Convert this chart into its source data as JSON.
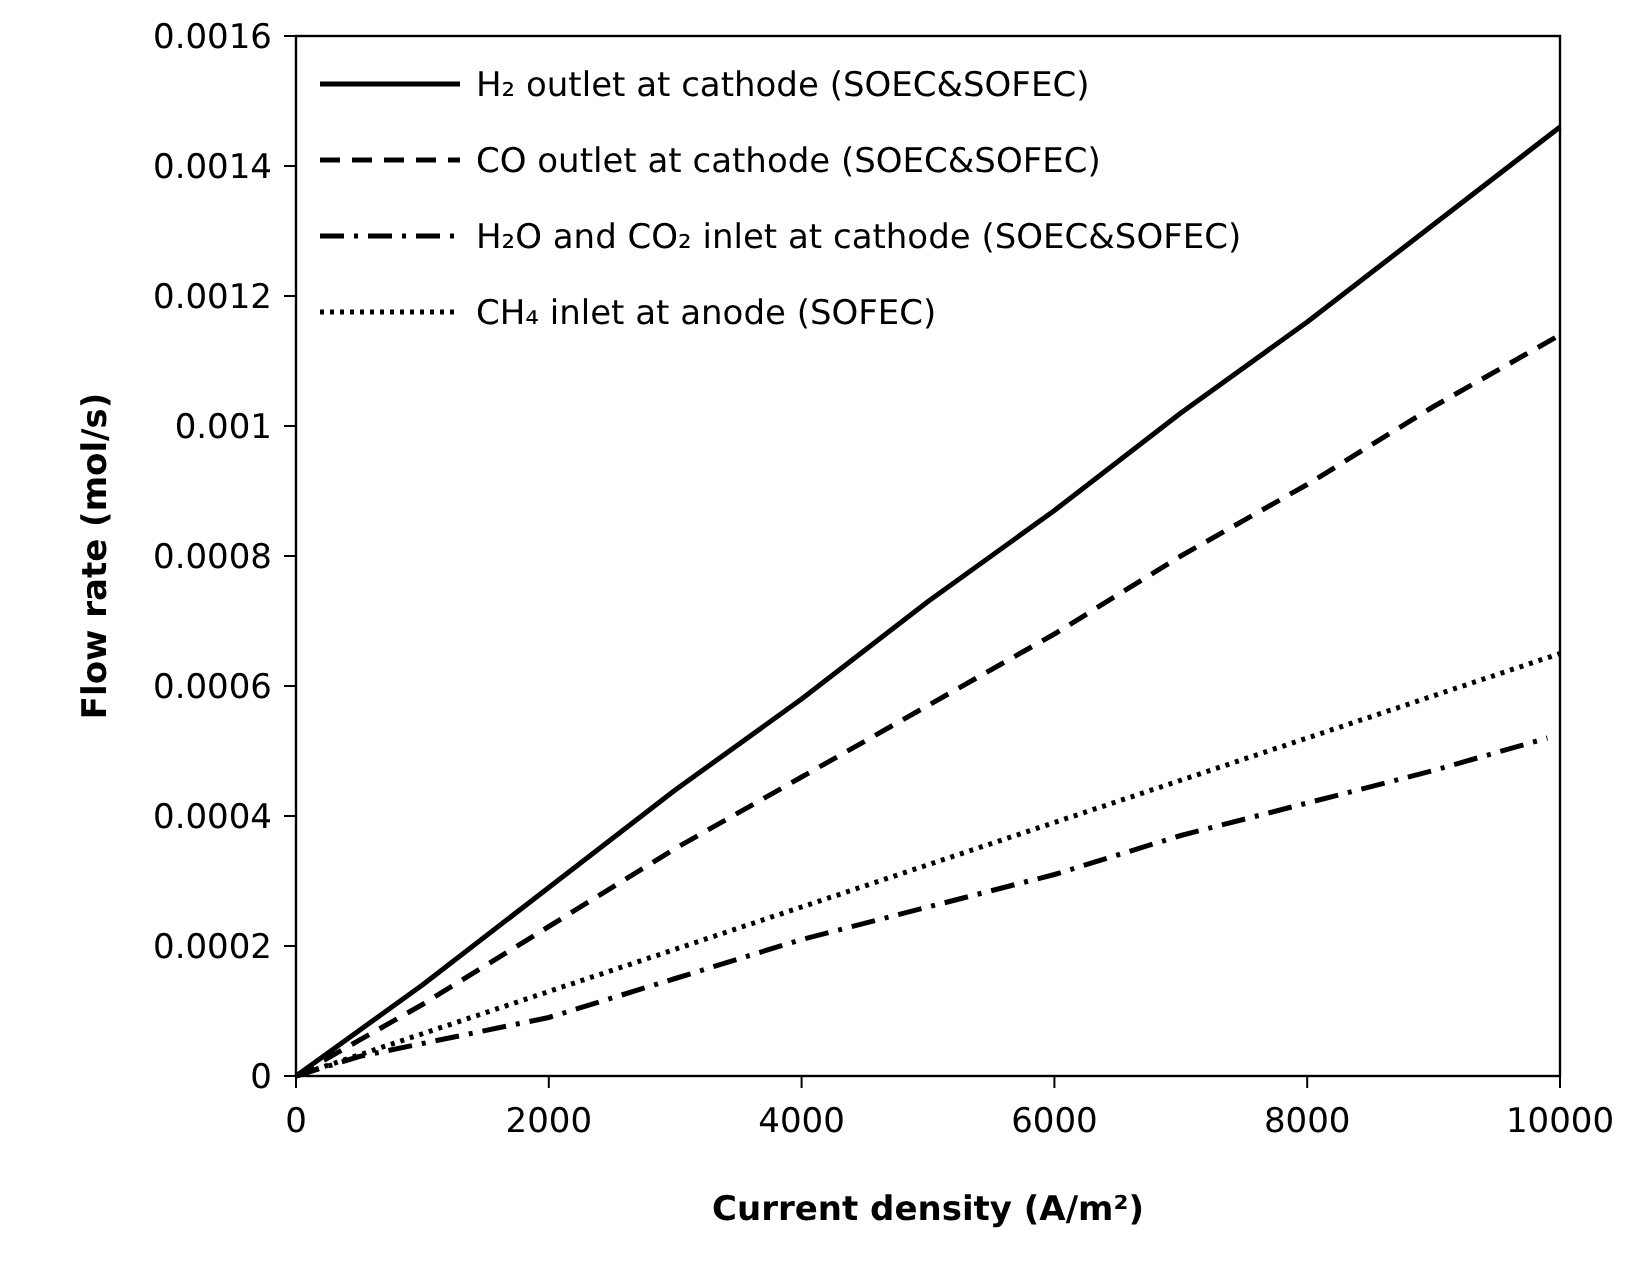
{
  "chart_data": {
    "type": "line",
    "xlabel": "Current density (A/m²)",
    "ylabel": "Flow rate (mol/s)",
    "xlim": [
      0,
      10000
    ],
    "xticks": [
      0,
      2000,
      4000,
      6000,
      8000,
      10000
    ],
    "ylim": [
      0,
      0.0016
    ],
    "yticks": [
      0,
      0.0002,
      0.0004,
      0.0006,
      0.0008,
      0.001,
      0.0012,
      0.0014,
      0.0016
    ],
    "legend": "top left",
    "grid": false,
    "series": [
      {
        "name": "H₂ outlet at cathode (SOEC&SOFEC)",
        "color": "#000000",
        "line_style": "solid",
        "x": [
          0,
          1000,
          2000,
          3000,
          4000,
          5000,
          6000,
          7000,
          8000,
          9000,
          10000
        ],
        "values": [
          0,
          0.00014,
          0.00029,
          0.00044,
          0.00058,
          0.00073,
          0.00087,
          0.00102,
          0.00116,
          0.00131,
          0.00146
        ]
      },
      {
        "name": "CO outlet at cathode (SOEC&SOFEC)",
        "color": "#000000",
        "line_style": "dashed",
        "x": [
          0,
          1000,
          2000,
          3000,
          4000,
          5000,
          6000,
          7000,
          8000,
          9000,
          10000
        ],
        "values": [
          0,
          0.00011,
          0.00023,
          0.00035,
          0.00046,
          0.00057,
          0.00068,
          0.0008,
          0.00091,
          0.00103,
          0.00114
        ]
      },
      {
        "name": "H₂O and CO₂ inlet  at cathode (SOEC&SOFEC)",
        "color": "#000000",
        "line_style": "dashdot",
        "x": [
          0,
          500,
          1000,
          2000,
          3000,
          4000,
          5000,
          6000,
          7000,
          8000,
          9000,
          9900
        ],
        "values": [
          0,
          3e-05,
          5e-05,
          9e-05,
          0.00015,
          0.00021,
          0.00026,
          0.00031,
          0.00037,
          0.00042,
          0.00047,
          0.00052
        ]
      },
      {
        "name": "CH₄ inlet at anode (SOFEC)",
        "color": "#000000",
        "line_style": "dotted",
        "x": [
          0,
          1000,
          2000,
          3000,
          4000,
          5000,
          6000,
          7000,
          8000,
          9000,
          10000
        ],
        "values": [
          0,
          6.5e-05,
          0.00013,
          0.000195,
          0.00026,
          0.000325,
          0.00039,
          0.000455,
          0.00052,
          0.000585,
          0.00065
        ]
      }
    ]
  }
}
